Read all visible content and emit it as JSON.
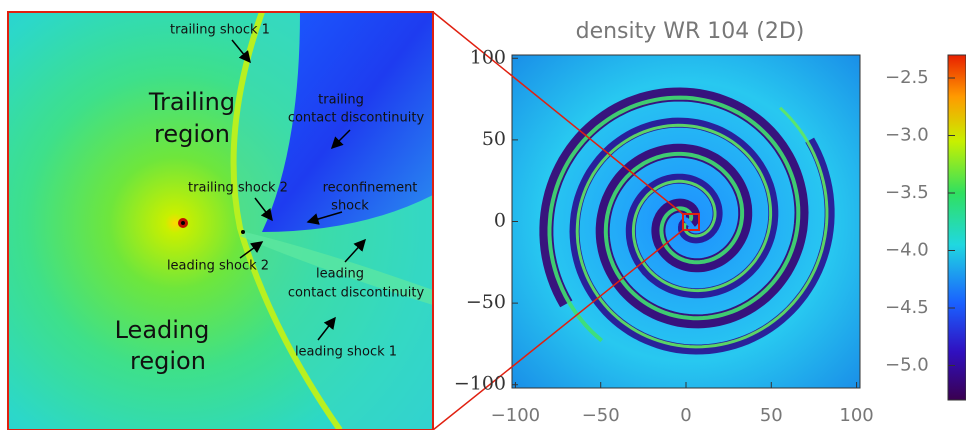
{
  "zoom_panel": {
    "labels": [
      {
        "text": "trailing shock 1"
      },
      {
        "text": "Trailing"
      },
      {
        "text": "region"
      },
      {
        "text": "trailing"
      },
      {
        "text": "contact discontinuity"
      },
      {
        "text": "trailing shock 2"
      },
      {
        "text": "reconfinement"
      },
      {
        "text": "shock"
      },
      {
        "text": "leading shock 2"
      },
      {
        "text": "leading"
      },
      {
        "text": "contact discontinuity"
      },
      {
        "text": "Leading"
      },
      {
        "text": "region"
      },
      {
        "text": "leading shock 1"
      }
    ]
  },
  "density_map": {
    "title": "density WR 104 (2D)",
    "xlim": [
      -102,
      102
    ],
    "ylim": [
      -102,
      102
    ],
    "xticks": [
      {
        "value": -100,
        "label": "−100"
      },
      {
        "value": -50,
        "label": "−50"
      },
      0,
      50,
      100
    ],
    "yticks": [
      {
        "value": -100,
        "label": "−100"
      },
      {
        "value": -50,
        "label": "−50"
      },
      0,
      50,
      100
    ]
  },
  "colorbar": {
    "lim": [
      -5.3,
      -2.3
    ],
    "ticks": [
      {
        "value": -2.5,
        "label": "−2.5"
      },
      {
        "value": -3.0,
        "label": "−3.0"
      },
      {
        "value": -3.5,
        "label": "−3.5"
      },
      {
        "value": -4.0,
        "label": "−4.0"
      },
      {
        "value": -4.5,
        "label": "−4.5"
      },
      {
        "value": -5.0,
        "label": "−5.0"
      }
    ]
  }
}
